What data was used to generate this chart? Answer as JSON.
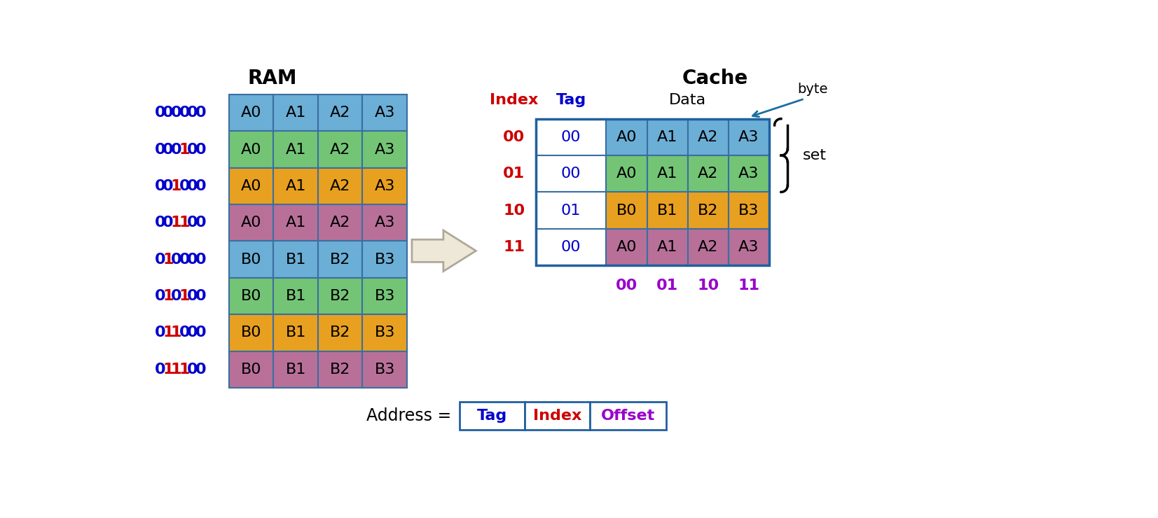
{
  "title_ram": "RAM",
  "title_cache": "Cache",
  "bg_color": "#ffffff",
  "ram_addresses": [
    "000000",
    "000100",
    "001000",
    "001100",
    "010000",
    "010100",
    "011000",
    "011100"
  ],
  "ram_addr_colors": [
    [
      "blue",
      "blue",
      "blue",
      "blue",
      "blue",
      "blue"
    ],
    [
      "blue",
      "blue",
      "blue",
      "red",
      "blue",
      "blue"
    ],
    [
      "blue",
      "blue",
      "red",
      "blue",
      "blue",
      "blue"
    ],
    [
      "blue",
      "blue",
      "red",
      "red",
      "blue",
      "blue"
    ],
    [
      "blue",
      "red",
      "blue",
      "blue",
      "blue",
      "blue"
    ],
    [
      "blue",
      "red",
      "blue",
      "red",
      "blue",
      "blue"
    ],
    [
      "blue",
      "red",
      "red",
      "blue",
      "blue",
      "blue"
    ],
    [
      "blue",
      "red",
      "red",
      "red",
      "blue",
      "blue"
    ]
  ],
  "ram_row_colors": [
    "#6baed6",
    "#74c476",
    "#e8a020",
    "#b87099",
    "#6baed6",
    "#74c476",
    "#e8a020",
    "#b87099"
  ],
  "ram_data": [
    [
      "A0",
      "A1",
      "A2",
      "A3"
    ],
    [
      "A0",
      "A1",
      "A2",
      "A3"
    ],
    [
      "A0",
      "A1",
      "A2",
      "A3"
    ],
    [
      "A0",
      "A1",
      "A2",
      "A3"
    ],
    [
      "B0",
      "B1",
      "B2",
      "B3"
    ],
    [
      "B0",
      "B1",
      "B2",
      "B3"
    ],
    [
      "B0",
      "B1",
      "B2",
      "B3"
    ],
    [
      "B0",
      "B1",
      "B2",
      "B3"
    ]
  ],
  "cache_index_labels": [
    "00",
    "01",
    "10",
    "11"
  ],
  "cache_index_color": "#cc0000",
  "cache_tag_color": "#0000cc",
  "cache_tags": [
    "00",
    "00",
    "01",
    "00"
  ],
  "cache_data": [
    [
      "A0",
      "A1",
      "A2",
      "A3"
    ],
    [
      "A0",
      "A1",
      "A2",
      "A3"
    ],
    [
      "B0",
      "B1",
      "B2",
      "B3"
    ],
    [
      "A0",
      "A1",
      "A2",
      "A3"
    ]
  ],
  "cache_row_colors": [
    "#6baed6",
    "#74c476",
    "#e8a020",
    "#b87099"
  ],
  "cache_byte_labels": [
    "00",
    "01",
    "10",
    "11"
  ],
  "cache_byte_label_color": "#9900cc",
  "address_tag_color": "#0000cc",
  "address_index_color": "#cc0000",
  "address_offset_color": "#9900cc",
  "byte_arrow_color": "#1a6fa0",
  "header_index_color": "#cc0000",
  "header_tag_color": "#0000cc",
  "header_data_color": "#000000",
  "char_color_map": {
    "blue": "#0000cc",
    "red": "#cc0000"
  }
}
